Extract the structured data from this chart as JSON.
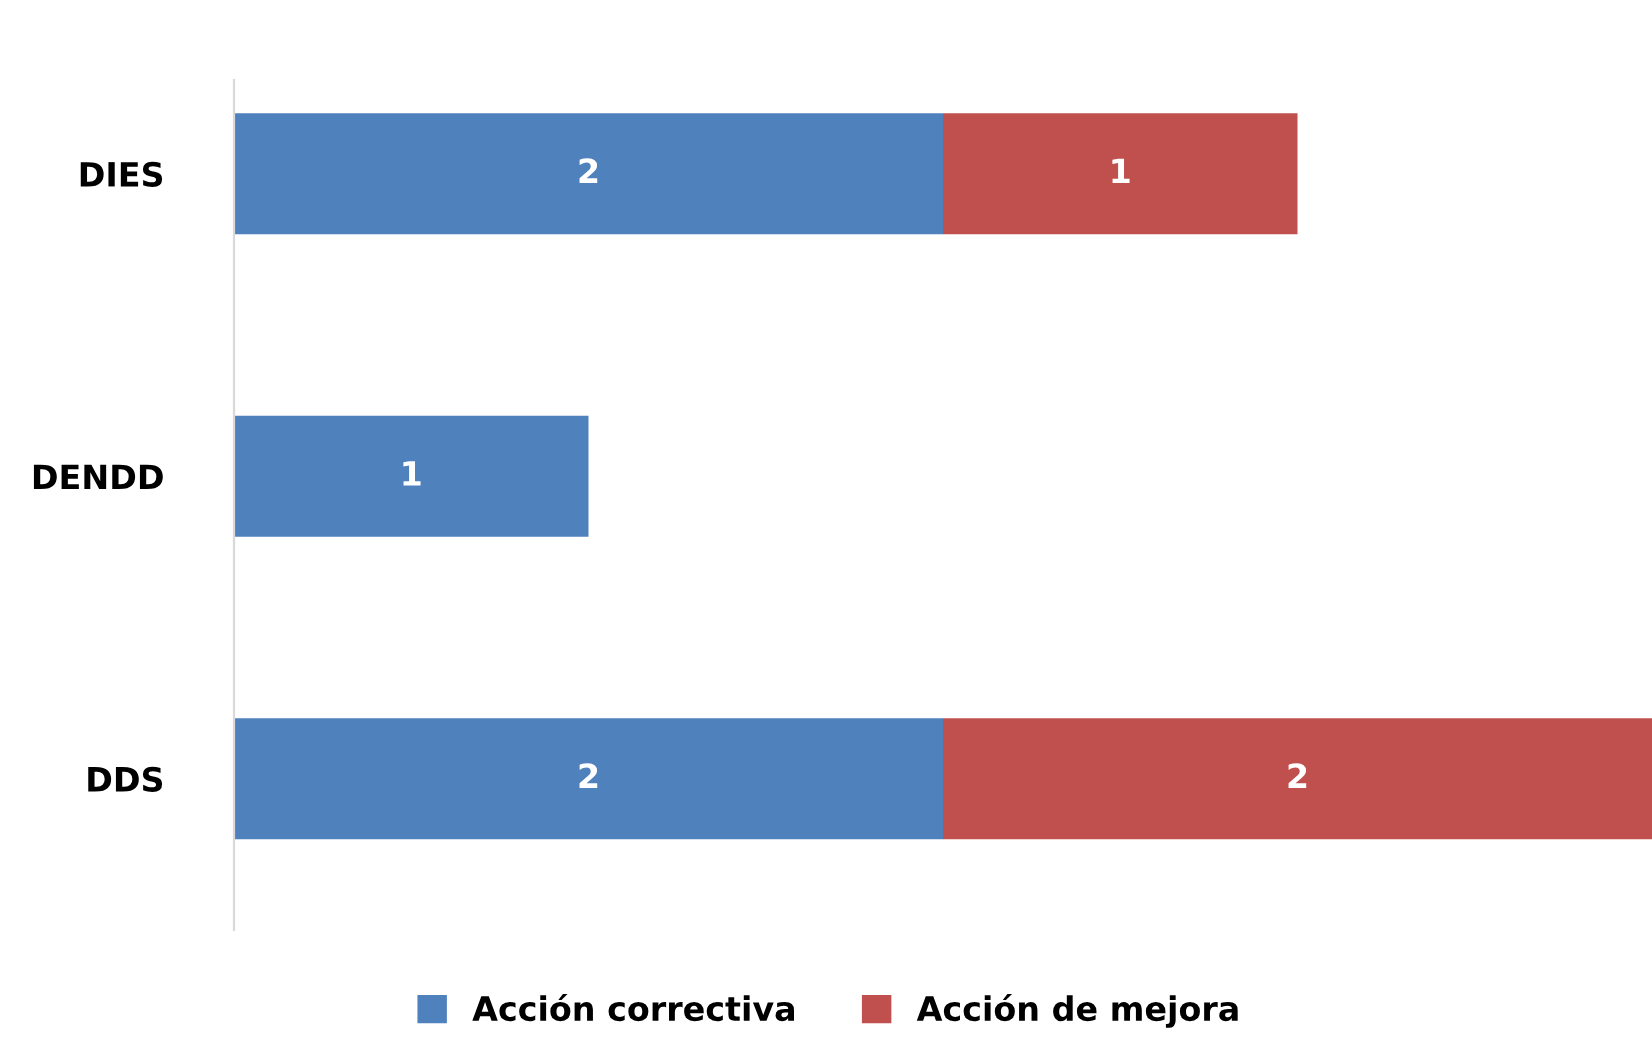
{
  "chart_data": {
    "type": "bar",
    "orientation": "horizontal",
    "stacked": true,
    "data_labels": true,
    "legend": "bottom",
    "grid": false,
    "tick_labels": "y",
    "categories": [
      "DIES",
      "DENDD",
      "DDS"
    ],
    "series": [
      {
        "name": "Acción correctiva",
        "color": "#4f81bd",
        "values": [
          2,
          1,
          2
        ]
      },
      {
        "name": "Acción de mejora",
        "color": "#c0504d",
        "values": [
          1,
          null,
          2
        ]
      }
    ]
  }
}
